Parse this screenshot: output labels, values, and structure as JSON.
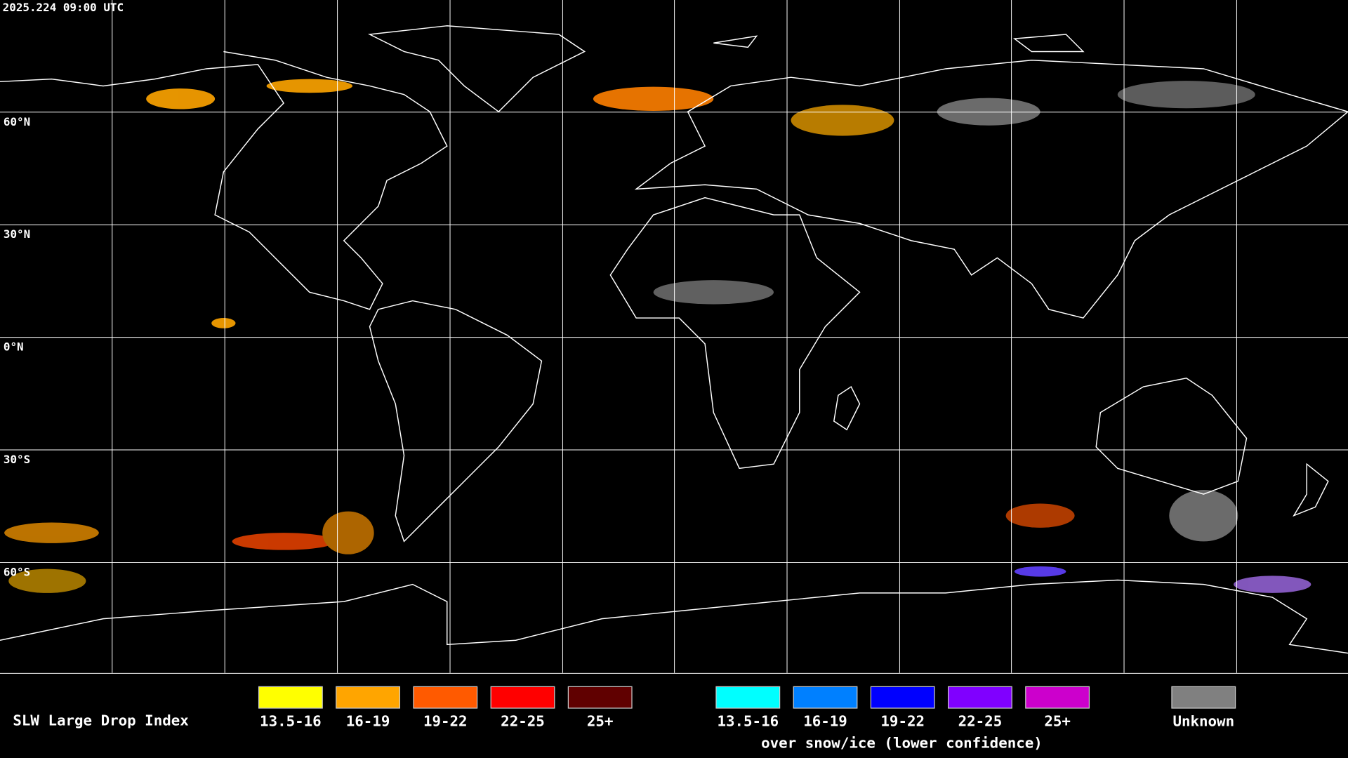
{
  "map": {
    "timestamp": "2025.224 09:00 UTC",
    "lat_labels": [
      "60°N",
      "30°N",
      "0°N",
      "30°S",
      "60°S"
    ]
  },
  "legend": {
    "title": "SLW Large Drop Index",
    "warm": [
      {
        "label": "13.5-16",
        "color": "#ffff00"
      },
      {
        "label": "16-19",
        "color": "#ffa500"
      },
      {
        "label": "19-22",
        "color": "#ff5a00"
      },
      {
        "label": "22-25",
        "color": "#ff0000"
      },
      {
        "label": "25+",
        "color": "#600000"
      }
    ],
    "cold": [
      {
        "label": "13.5-16",
        "color": "#00ffff"
      },
      {
        "label": "16-19",
        "color": "#0080ff"
      },
      {
        "label": "19-22",
        "color": "#0000ff"
      },
      {
        "label": "22-25",
        "color": "#8000ff"
      },
      {
        "label": "25+",
        "color": "#cc00cc"
      }
    ],
    "note": "over snow/ice (lower confidence)",
    "unknown": {
      "label": "Unknown",
      "color": "#808080"
    }
  }
}
